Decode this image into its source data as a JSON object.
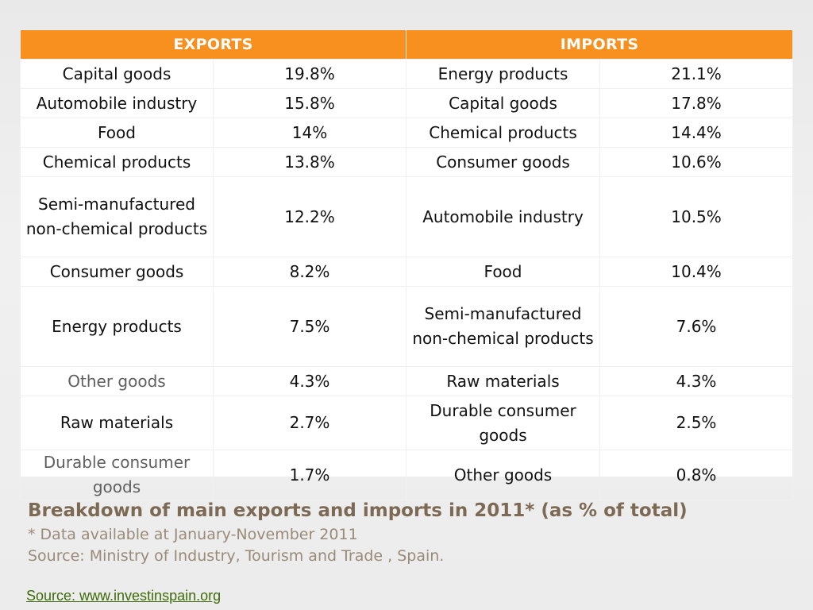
{
  "table": {
    "headers": {
      "exports": "EXPORTS",
      "imports": "IMPORTS"
    },
    "rows": [
      {
        "export_item": "Capital goods",
        "export_pct": "19.8%",
        "import_item": "Energy products",
        "import_pct": "21.1%"
      },
      {
        "export_item": "Automobile industry",
        "export_pct": "15.8%",
        "import_item": "Capital goods",
        "import_pct": "17.8%"
      },
      {
        "export_item": "Food",
        "export_pct": "14%",
        "import_item": "Chemical products",
        "import_pct": "14.4%"
      },
      {
        "export_item": "Chemical products",
        "export_pct": "13.8%",
        "import_item": "Consumer goods",
        "import_pct": "10.6%"
      },
      {
        "export_item": "Semi-manufactured non-chemical products",
        "export_pct": "12.2%",
        "import_item": "Automobile industry",
        "import_pct": "10.5%"
      },
      {
        "export_item": "Consumer goods",
        "export_pct": "8.2%",
        "import_item": "Food",
        "import_pct": "10.4%"
      },
      {
        "export_item": "Energy products",
        "export_pct": "7.5%",
        "import_item": "Semi-manufactured non-chemical products",
        "import_pct": "7.6%"
      },
      {
        "export_item": "Other goods",
        "export_pct": "4.3%",
        "import_item": "Raw materials",
        "import_pct": "4.3%"
      },
      {
        "export_item": "Raw materials",
        "export_pct": "2.7%",
        "import_item": "Durable consumer goods",
        "import_pct": "2.5%"
      },
      {
        "export_item": "Durable consumer goods",
        "export_pct": "1.7%",
        "import_item": "Other goods",
        "import_pct": "0.8%"
      }
    ]
  },
  "caption": {
    "title": "Breakdown of main exports and imports in 2011* (as % of total)",
    "note": "* Data available at January-November 2011",
    "source": "Source: Ministry of Industry, Tourism and Trade , Spain."
  },
  "source_link": {
    "text": "Source: www.investinspain.org"
  },
  "colors": {
    "header_bg": "#f7901e",
    "header_text": "#ffffff",
    "caption_title": "#7d6a55",
    "caption_text": "#9a8a78",
    "link": "#3f6b0a"
  }
}
